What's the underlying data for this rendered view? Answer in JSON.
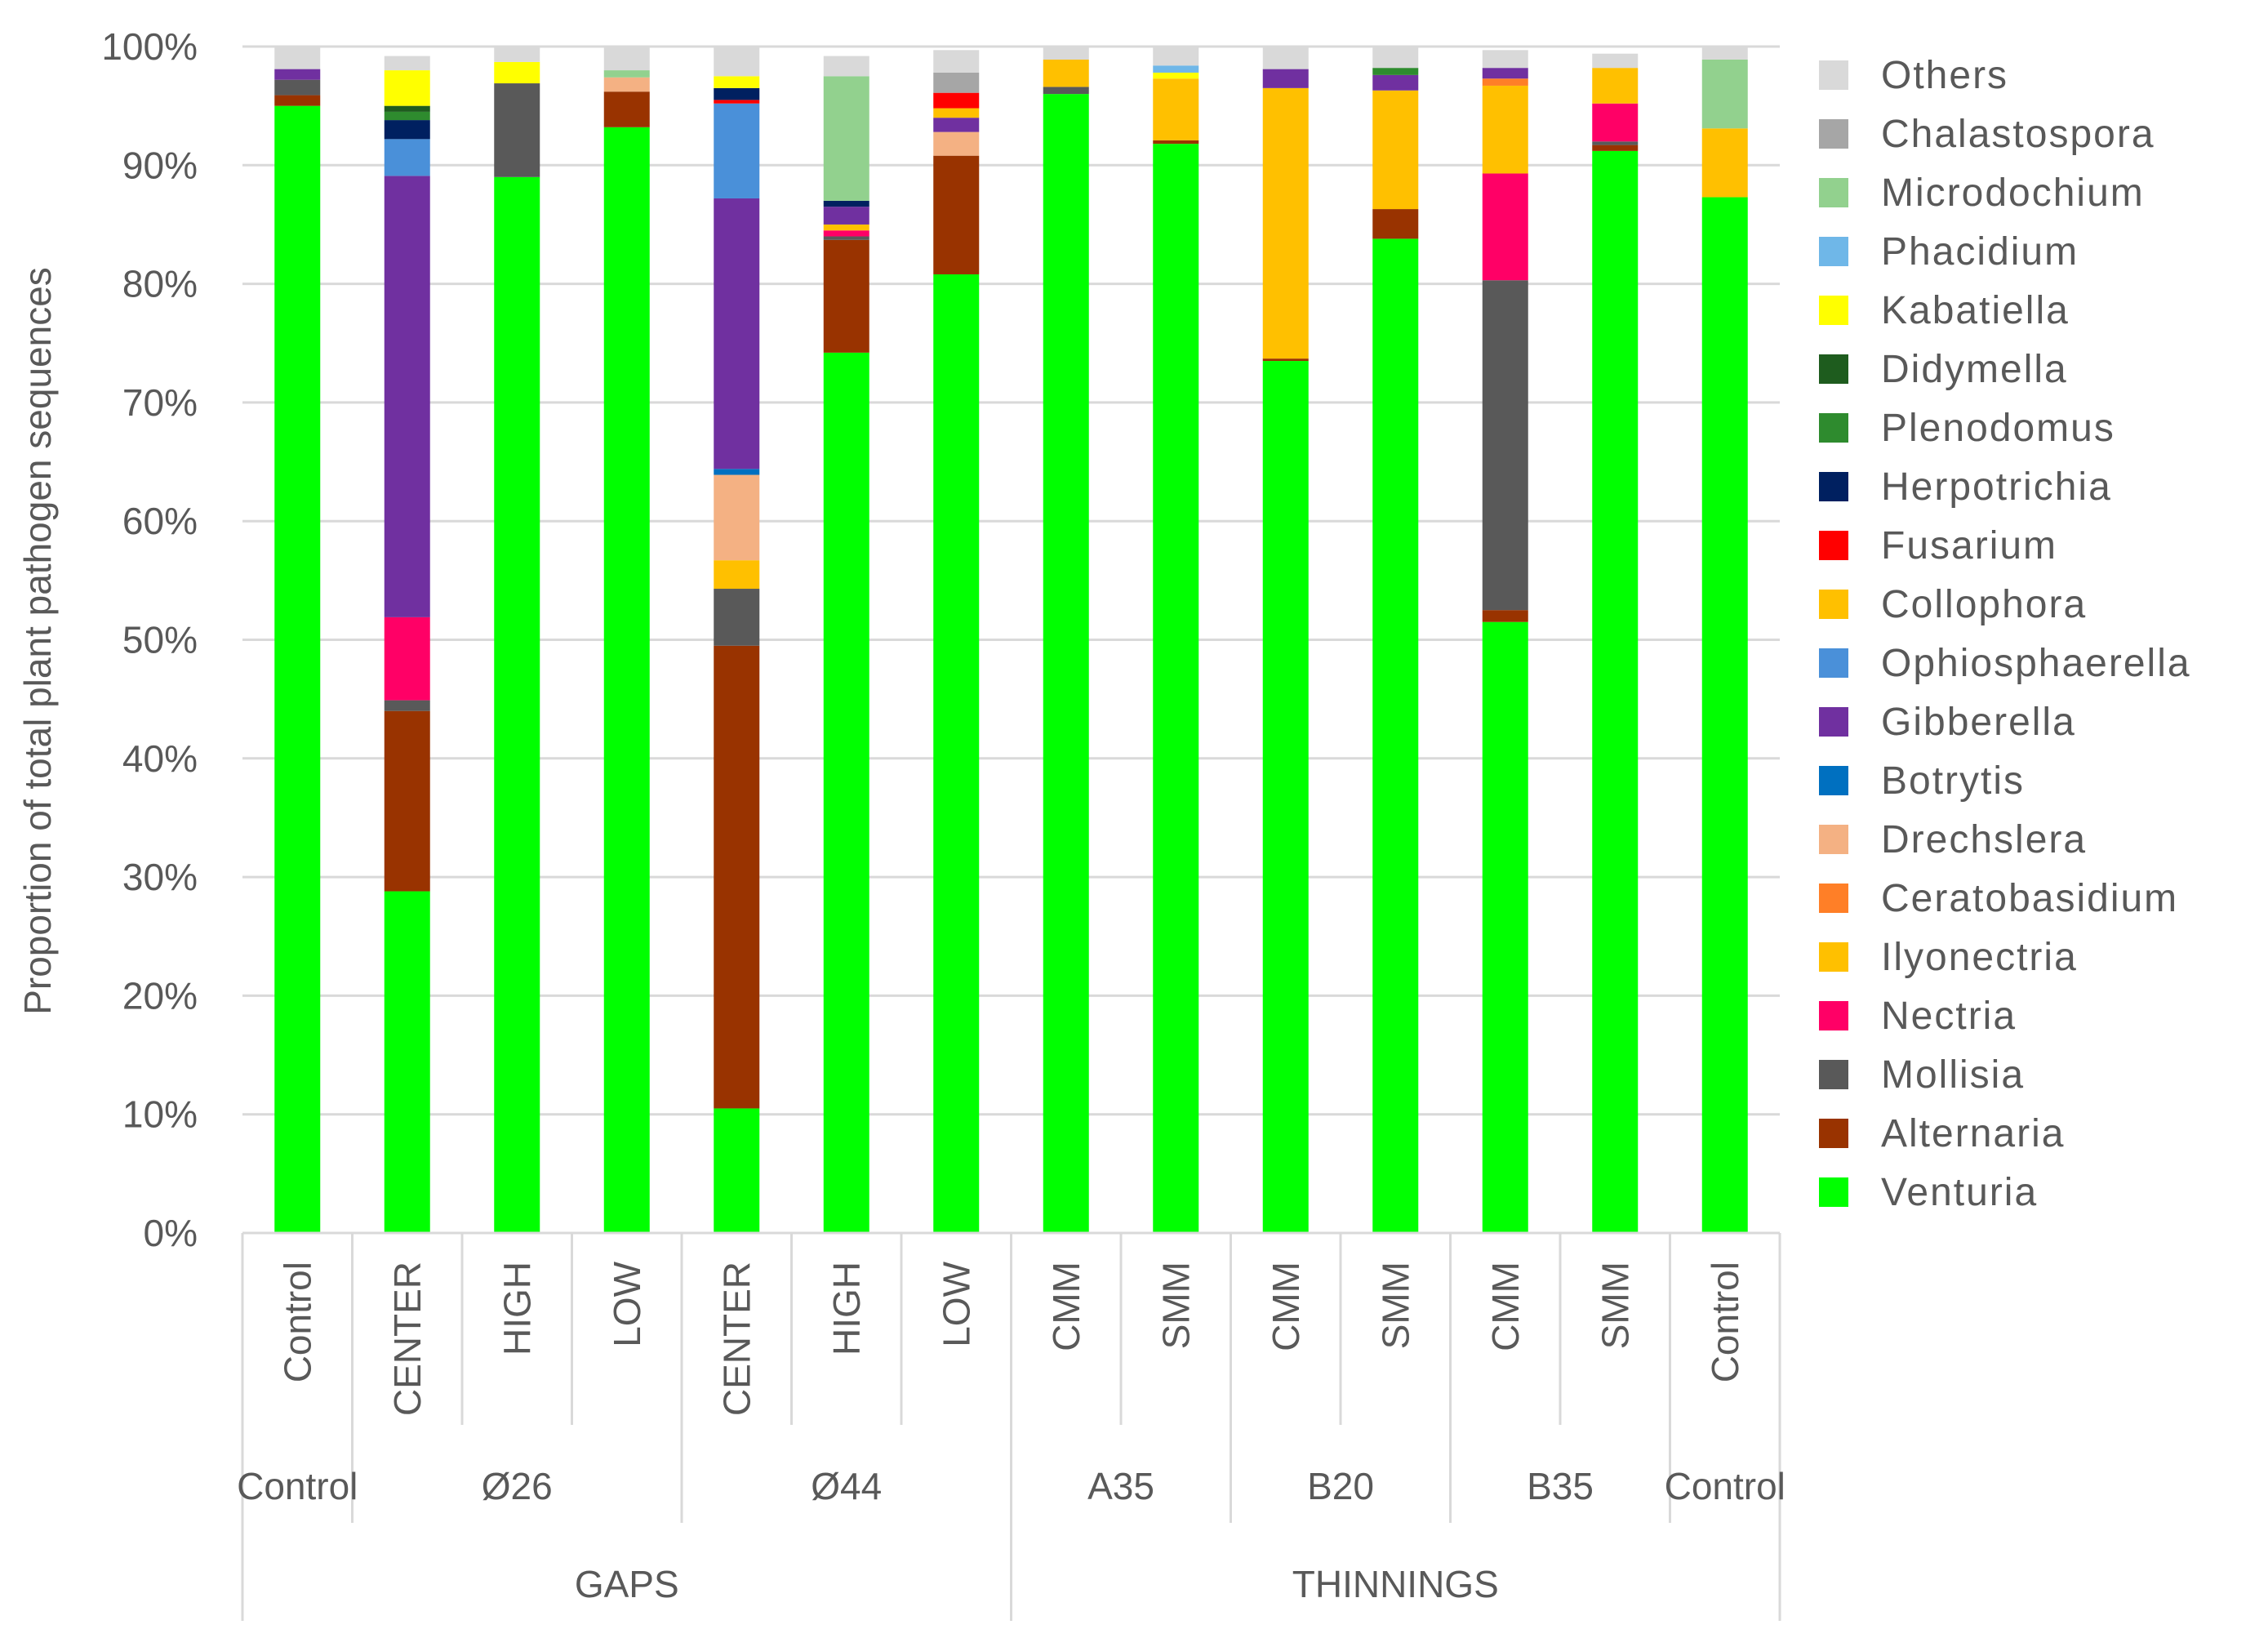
{
  "chart_data": {
    "type": "bar",
    "stacked": true,
    "ylabel": "Proportion of total plant pathogen sequences",
    "xlabel": "",
    "title": "",
    "ylim": [
      0,
      100
    ],
    "ytick_labels": [
      "0%",
      "10%",
      "20%",
      "30%",
      "40%",
      "50%",
      "60%",
      "70%",
      "80%",
      "90%",
      "100%"
    ],
    "grid": "horizontal",
    "legend_position": "right",
    "categories": [
      "Control",
      "CENTER",
      "HIGH",
      "LOW",
      "CENTER",
      "HIGH",
      "LOW",
      "CMM",
      "SMM",
      "CMM",
      "SMM",
      "CMM",
      "SMM",
      "Control"
    ],
    "group_level2": [
      {
        "label": "Control",
        "span": 1
      },
      {
        "label": "Ø26",
        "span": 3
      },
      {
        "label": "Ø44",
        "span": 3
      },
      {
        "label": "A35",
        "span": 2
      },
      {
        "label": "B20",
        "span": 2
      },
      {
        "label": "B35",
        "span": 2
      },
      {
        "label": "Control",
        "span": 1
      }
    ],
    "group_level3": [
      {
        "label": "GAPS",
        "span": 7
      },
      {
        "label": "THINNINGS",
        "span": 7
      }
    ],
    "series": [
      {
        "name": "Venturia",
        "color": "#00ff00",
        "values": [
          95.0,
          28.8,
          89.0,
          93.2,
          10.5,
          74.2,
          80.8,
          96.0,
          91.8,
          73.5,
          83.8,
          51.5,
          91.2,
          87.3
        ]
      },
      {
        "name": "Alternaria",
        "color": "#993300",
        "values": [
          0.9,
          15.2,
          0,
          3.0,
          39.0,
          9.5,
          10.0,
          0,
          0.3,
          0.2,
          2.5,
          1.0,
          0.5,
          0
        ]
      },
      {
        "name": "Mollisia",
        "color": "#595959",
        "values": [
          1.3,
          0.9,
          7.9,
          0,
          4.8,
          0.3,
          0,
          0.6,
          0,
          0,
          0,
          27.8,
          0.3,
          0
        ]
      },
      {
        "name": "Nectria",
        "color": "#ff0066",
        "values": [
          0,
          7.0,
          0,
          0,
          0,
          0.5,
          0,
          0,
          0,
          0,
          0,
          9.0,
          3.2,
          0
        ]
      },
      {
        "name": "Ilyonectria",
        "color": "#ffc000",
        "values": [
          0,
          0,
          0,
          0,
          2.4,
          0.5,
          0,
          2.3,
          5.2,
          22.8,
          10.0,
          7.4,
          3.0,
          5.8
        ]
      },
      {
        "name": "Ceratobasidium",
        "color": "#ff7f27",
        "values": [
          0,
          0,
          0,
          0,
          0,
          0,
          0,
          0,
          0,
          0,
          0,
          0.6,
          0,
          0
        ]
      },
      {
        "name": "Drechslera",
        "color": "#f4b183",
        "values": [
          0,
          0,
          0,
          1.2,
          7.2,
          0,
          2.0,
          0,
          0,
          0,
          0,
          0,
          0,
          0
        ]
      },
      {
        "name": "Botrytis",
        "color": "#0070c0",
        "values": [
          0,
          0,
          0,
          0,
          0.5,
          0,
          0,
          0,
          0,
          0,
          0,
          0,
          0,
          0
        ]
      },
      {
        "name": "Gibberella",
        "color": "#7030a0",
        "values": [
          0.9,
          37.2,
          0,
          0,
          22.8,
          1.5,
          1.2,
          0,
          0,
          1.6,
          1.3,
          0.9,
          0,
          0
        ]
      },
      {
        "name": "Ophiosphaerella",
        "color": "#4a90d9",
        "values": [
          0,
          3.1,
          0,
          0,
          8.0,
          0,
          0,
          0,
          0,
          0,
          0,
          0,
          0,
          0
        ]
      },
      {
        "name": "Collophora",
        "color": "#ffc000",
        "values": [
          0,
          0,
          0,
          0,
          0,
          0,
          0.8,
          0,
          0,
          0,
          0,
          0,
          0,
          0
        ]
      },
      {
        "name": "Fusarium",
        "color": "#ff0000",
        "values": [
          0,
          0,
          0,
          0,
          0.3,
          0,
          1.3,
          0,
          0,
          0,
          0,
          0,
          0,
          0
        ]
      },
      {
        "name": "Herpotrichia",
        "color": "#002060",
        "values": [
          0,
          1.6,
          0,
          0,
          1.0,
          0.5,
          0,
          0,
          0,
          0,
          0,
          0,
          0,
          0
        ]
      },
      {
        "name": "Plenodomus",
        "color": "#2e8b2e",
        "values": [
          0,
          0.7,
          0,
          0,
          0,
          0,
          0,
          0,
          0,
          0,
          0.6,
          0,
          0,
          0
        ]
      },
      {
        "name": "Didymella",
        "color": "#1e5c1e",
        "values": [
          0,
          0.5,
          0,
          0,
          0,
          0,
          0,
          0,
          0,
          0,
          0,
          0,
          0,
          0
        ]
      },
      {
        "name": "Kabatiella",
        "color": "#ffff00",
        "values": [
          0,
          3.0,
          1.8,
          0,
          1.0,
          0,
          0,
          0,
          0.5,
          0,
          0,
          0,
          0,
          0
        ]
      },
      {
        "name": "Phacidium",
        "color": "#6fb7e8",
        "values": [
          0,
          0,
          0,
          0,
          0,
          0,
          0,
          0,
          0.6,
          0,
          0,
          0,
          0,
          0
        ]
      },
      {
        "name": "Microdochium",
        "color": "#92d18e",
        "values": [
          0,
          0,
          0,
          0.6,
          0,
          10.5,
          0,
          0,
          0,
          0,
          0,
          0,
          0,
          5.8
        ]
      },
      {
        "name": "Chalastospora",
        "color": "#a6a6a6",
        "values": [
          0,
          0,
          0,
          0,
          0,
          0,
          1.7,
          0,
          0,
          0,
          0,
          0,
          0,
          0
        ]
      },
      {
        "name": "Others",
        "color": "#d9d9d9",
        "values": [
          1.9,
          1.2,
          1.3,
          2.0,
          2.5,
          1.7,
          1.9,
          1.1,
          1.6,
          1.9,
          1.8,
          1.5,
          1.2,
          1.1
        ]
      }
    ],
    "legend": [
      "Others",
      "Chalastospora",
      "Microdochium",
      "Phacidium",
      "Kabatiella",
      "Didymella",
      "Plenodomus",
      "Herpotrichia",
      "Fusarium",
      "Collophora",
      "Ophiosphaerella",
      "Gibberella",
      "Botrytis",
      "Drechslera",
      "Ceratobasidium",
      "Ilyonectria",
      "Nectria",
      "Mollisia",
      "Alternaria",
      "Venturia"
    ]
  }
}
